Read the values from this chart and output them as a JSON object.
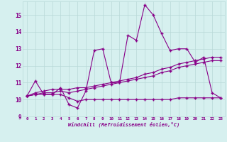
{
  "xlabel": "Windchill (Refroidissement éolien,°C)",
  "background_color": "#d6f0ef",
  "grid_color": "#b8d8d8",
  "line_color": "#880088",
  "xlim": [
    -0.5,
    23.5
  ],
  "ylim": [
    9.0,
    15.8
  ],
  "yticks": [
    9,
    10,
    11,
    12,
    13,
    14,
    15
  ],
  "xticks": [
    0,
    1,
    2,
    3,
    4,
    5,
    6,
    7,
    8,
    9,
    10,
    11,
    12,
    13,
    14,
    15,
    16,
    17,
    18,
    19,
    20,
    21,
    22,
    23
  ],
  "series1_x": [
    0,
    1,
    2,
    3,
    4,
    5,
    6,
    7,
    8,
    9,
    10,
    11,
    12,
    13,
    14,
    15,
    16,
    17,
    18,
    19,
    20,
    21,
    22,
    23
  ],
  "series1_y": [
    10.2,
    11.1,
    10.3,
    10.3,
    10.7,
    9.7,
    9.5,
    10.5,
    12.9,
    13.0,
    11.0,
    11.0,
    13.8,
    13.5,
    15.6,
    15.0,
    13.9,
    12.9,
    13.0,
    13.0,
    12.2,
    12.5,
    10.4,
    10.1
  ],
  "series2_x": [
    0,
    1,
    2,
    3,
    4,
    5,
    6,
    7,
    8,
    9,
    10,
    11,
    12,
    13,
    14,
    15,
    16,
    17,
    18,
    19,
    20,
    21,
    22,
    23
  ],
  "series2_y": [
    10.2,
    10.4,
    10.5,
    10.6,
    10.6,
    10.6,
    10.7,
    10.7,
    10.8,
    10.9,
    11.0,
    11.1,
    11.2,
    11.3,
    11.5,
    11.6,
    11.8,
    11.9,
    12.1,
    12.2,
    12.3,
    12.4,
    12.5,
    12.5
  ],
  "series3_x": [
    0,
    1,
    2,
    3,
    4,
    5,
    6,
    7,
    8,
    9,
    10,
    11,
    12,
    13,
    14,
    15,
    16,
    17,
    18,
    19,
    20,
    21,
    22,
    23
  ],
  "series3_y": [
    10.2,
    10.3,
    10.3,
    10.3,
    10.3,
    10.1,
    9.9,
    10.0,
    10.0,
    10.0,
    10.0,
    10.0,
    10.0,
    10.0,
    10.0,
    10.0,
    10.0,
    10.0,
    10.1,
    10.1,
    10.1,
    10.1,
    10.1,
    10.1
  ],
  "series4_x": [
    0,
    1,
    2,
    3,
    4,
    5,
    6,
    7,
    8,
    9,
    10,
    11,
    12,
    13,
    14,
    15,
    16,
    17,
    18,
    19,
    20,
    21,
    22,
    23
  ],
  "series4_y": [
    10.2,
    10.3,
    10.4,
    10.4,
    10.5,
    10.4,
    10.5,
    10.6,
    10.7,
    10.8,
    10.9,
    11.0,
    11.1,
    11.2,
    11.3,
    11.4,
    11.6,
    11.7,
    11.9,
    12.0,
    12.1,
    12.2,
    12.3,
    12.3
  ]
}
